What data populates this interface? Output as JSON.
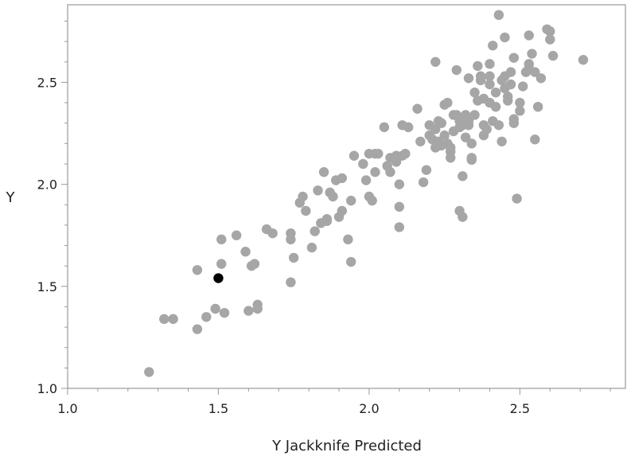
{
  "chart_data": {
    "type": "scatter",
    "xlabel": "Y Jackknife Predicted",
    "ylabel": "Y",
    "xlim": [
      1.0,
      2.85
    ],
    "ylim": [
      1.0,
      2.88
    ],
    "x_ticks": [
      1.0,
      1.5,
      2.0,
      2.5
    ],
    "x_tick_labels": [
      "1.0",
      "1.5",
      "2.0",
      "2.5"
    ],
    "y_ticks": [
      1.0,
      1.5,
      2.0,
      2.5
    ],
    "y_tick_labels": [
      "1.0",
      "1.5",
      "2.0",
      "2.5"
    ],
    "grid": false,
    "point_color": "#a6a6a6",
    "highlight_color": "#000000",
    "highlight_point": [
      1.5,
      1.54
    ],
    "points": [
      [
        1.27,
        1.08
      ],
      [
        1.32,
        1.34
      ],
      [
        1.35,
        1.34
      ],
      [
        1.43,
        1.29
      ],
      [
        1.43,
        1.58
      ],
      [
        1.46,
        1.35
      ],
      [
        1.49,
        1.39
      ],
      [
        1.51,
        1.73
      ],
      [
        1.51,
        1.61
      ],
      [
        1.52,
        1.37
      ],
      [
        1.56,
        1.75
      ],
      [
        1.59,
        1.67
      ],
      [
        1.6,
        1.38
      ],
      [
        1.61,
        1.6
      ],
      [
        1.62,
        1.61
      ],
      [
        1.63,
        1.41
      ],
      [
        1.63,
        1.39
      ],
      [
        1.66,
        1.78
      ],
      [
        1.68,
        1.76
      ],
      [
        1.74,
        1.76
      ],
      [
        1.74,
        1.73
      ],
      [
        1.74,
        1.52
      ],
      [
        1.75,
        1.64
      ],
      [
        1.77,
        1.91
      ],
      [
        1.78,
        1.94
      ],
      [
        1.79,
        1.87
      ],
      [
        1.81,
        1.69
      ],
      [
        1.82,
        1.77
      ],
      [
        1.83,
        1.97
      ],
      [
        1.84,
        1.81
      ],
      [
        1.86,
        1.82
      ],
      [
        1.86,
        1.83
      ],
      [
        1.85,
        2.06
      ],
      [
        1.87,
        1.96
      ],
      [
        1.88,
        1.94
      ],
      [
        1.89,
        2.02
      ],
      [
        1.9,
        1.84
      ],
      [
        1.91,
        1.87
      ],
      [
        1.91,
        2.03
      ],
      [
        1.93,
        1.73
      ],
      [
        1.94,
        1.92
      ],
      [
        1.94,
        1.62
      ],
      [
        1.95,
        2.14
      ],
      [
        1.98,
        2.1
      ],
      [
        1.99,
        2.02
      ],
      [
        2.0,
        1.94
      ],
      [
        2.0,
        2.15
      ],
      [
        2.01,
        1.92
      ],
      [
        2.02,
        2.15
      ],
      [
        2.02,
        2.06
      ],
      [
        2.03,
        2.15
      ],
      [
        2.05,
        2.28
      ],
      [
        2.06,
        2.09
      ],
      [
        2.07,
        2.06
      ],
      [
        2.07,
        2.13
      ],
      [
        2.08,
        2.13
      ],
      [
        2.09,
        2.11
      ],
      [
        2.09,
        2.14
      ],
      [
        2.1,
        1.79
      ],
      [
        2.1,
        1.89
      ],
      [
        2.1,
        2.0
      ],
      [
        2.11,
        2.14
      ],
      [
        2.11,
        2.29
      ],
      [
        2.12,
        2.15
      ],
      [
        2.13,
        2.28
      ],
      [
        2.16,
        2.37
      ],
      [
        2.17,
        2.21
      ],
      [
        2.18,
        2.01
      ],
      [
        2.19,
        2.07
      ],
      [
        2.2,
        2.29
      ],
      [
        2.2,
        2.24
      ],
      [
        2.21,
        2.22
      ],
      [
        2.21,
        2.22
      ],
      [
        2.22,
        2.27
      ],
      [
        2.22,
        2.6
      ],
      [
        2.22,
        2.18
      ],
      [
        2.23,
        2.21
      ],
      [
        2.23,
        2.31
      ],
      [
        2.24,
        2.19
      ],
      [
        2.24,
        2.3
      ],
      [
        2.25,
        2.39
      ],
      [
        2.25,
        2.24
      ],
      [
        2.26,
        2.2
      ],
      [
        2.26,
        2.4
      ],
      [
        2.27,
        2.18
      ],
      [
        2.27,
        2.16
      ],
      [
        2.27,
        2.13
      ],
      [
        2.28,
        2.34
      ],
      [
        2.28,
        2.26
      ],
      [
        2.29,
        2.56
      ],
      [
        2.29,
        2.34
      ],
      [
        2.3,
        2.31
      ],
      [
        2.3,
        2.28
      ],
      [
        2.3,
        1.87
      ],
      [
        2.31,
        1.84
      ],
      [
        2.31,
        2.29
      ],
      [
        2.31,
        2.04
      ],
      [
        2.32,
        2.34
      ],
      [
        2.32,
        2.23
      ],
      [
        2.33,
        2.29
      ],
      [
        2.33,
        2.31
      ],
      [
        2.33,
        2.52
      ],
      [
        2.34,
        2.13
      ],
      [
        2.34,
        2.2
      ],
      [
        2.34,
        2.12
      ],
      [
        2.35,
        2.45
      ],
      [
        2.35,
        2.34
      ],
      [
        2.36,
        2.41
      ],
      [
        2.36,
        2.58
      ],
      [
        2.37,
        2.51
      ],
      [
        2.37,
        2.53
      ],
      [
        2.38,
        2.24
      ],
      [
        2.38,
        2.42
      ],
      [
        2.38,
        2.29
      ],
      [
        2.39,
        2.27
      ],
      [
        2.4,
        2.59
      ],
      [
        2.4,
        2.53
      ],
      [
        2.4,
        2.49
      ],
      [
        2.4,
        2.4
      ],
      [
        2.41,
        2.68
      ],
      [
        2.41,
        2.31
      ],
      [
        2.42,
        2.45
      ],
      [
        2.42,
        2.38
      ],
      [
        2.43,
        2.83
      ],
      [
        2.43,
        2.29
      ],
      [
        2.44,
        2.51
      ],
      [
        2.44,
        2.21
      ],
      [
        2.45,
        2.53
      ],
      [
        2.45,
        2.47
      ],
      [
        2.45,
        2.72
      ],
      [
        2.46,
        2.43
      ],
      [
        2.46,
        2.41
      ],
      [
        2.47,
        2.55
      ],
      [
        2.47,
        2.49
      ],
      [
        2.48,
        2.32
      ],
      [
        2.48,
        2.3
      ],
      [
        2.48,
        2.62
      ],
      [
        2.49,
        1.93
      ],
      [
        2.5,
        2.36
      ],
      [
        2.5,
        2.4
      ],
      [
        2.51,
        2.48
      ],
      [
        2.52,
        2.55
      ],
      [
        2.53,
        2.73
      ],
      [
        2.53,
        2.59
      ],
      [
        2.53,
        2.57
      ],
      [
        2.54,
        2.64
      ],
      [
        2.55,
        2.22
      ],
      [
        2.55,
        2.55
      ],
      [
        2.56,
        2.38
      ],
      [
        2.57,
        2.52
      ],
      [
        2.59,
        2.76
      ],
      [
        2.6,
        2.75
      ],
      [
        2.6,
        2.71
      ],
      [
        2.61,
        2.63
      ],
      [
        2.71,
        2.61
      ]
    ]
  }
}
